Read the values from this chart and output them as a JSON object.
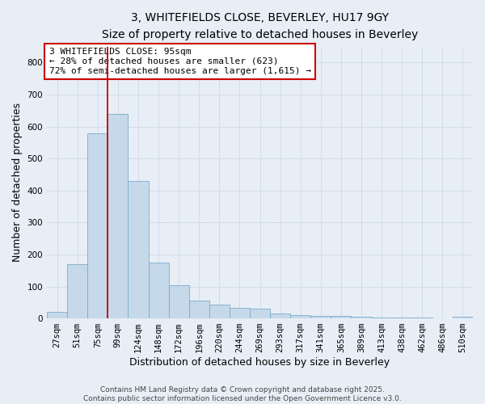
{
  "title_line1": "3, WHITEFIELDS CLOSE, BEVERLEY, HU17 9GY",
  "title_line2": "Size of property relative to detached houses in Beverley",
  "xlabel": "Distribution of detached houses by size in Beverley",
  "ylabel": "Number of detached properties",
  "bar_labels": [
    "27sqm",
    "51sqm",
    "75sqm",
    "99sqm",
    "124sqm",
    "148sqm",
    "172sqm",
    "196sqm",
    "220sqm",
    "244sqm",
    "269sqm",
    "293sqm",
    "317sqm",
    "341sqm",
    "365sqm",
    "389sqm",
    "413sqm",
    "438sqm",
    "462sqm",
    "486sqm",
    "510sqm"
  ],
  "bar_values": [
    20,
    170,
    580,
    640,
    430,
    175,
    105,
    57,
    42,
    33,
    30,
    15,
    10,
    8,
    7,
    5,
    4,
    3,
    2,
    1,
    5
  ],
  "bar_color": "#c6d9ea",
  "bar_edge_color": "#7aaac8",
  "property_line_x": 2.5,
  "property_line_color": "#cc0000",
  "annotation_text": "3 WHITEFIELDS CLOSE: 95sqm\n← 28% of detached houses are smaller (623)\n72% of semi-detached houses are larger (1,615) →",
  "annotation_box_color": "white",
  "annotation_box_edge_color": "#cc0000",
  "ylim": [
    0,
    850
  ],
  "yticks": [
    0,
    100,
    200,
    300,
    400,
    500,
    600,
    700,
    800
  ],
  "grid_color": "#d0dcea",
  "background_color": "#e8eef6",
  "footer_line1": "Contains HM Land Registry data © Crown copyright and database right 2025.",
  "footer_line2": "Contains public sector information licensed under the Open Government Licence v3.0.",
  "title_fontsize": 10,
  "subtitle_fontsize": 9,
  "axis_label_fontsize": 9,
  "tick_fontsize": 7.5,
  "annotation_fontsize": 8,
  "footer_fontsize": 6.5
}
